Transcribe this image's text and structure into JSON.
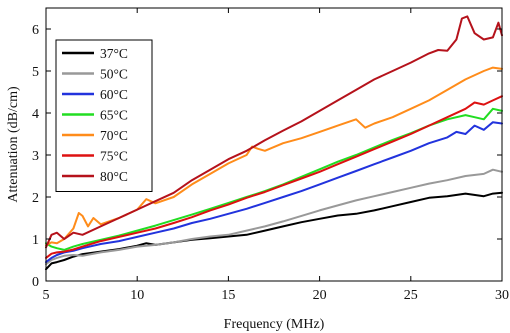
{
  "chart_data": {
    "type": "line",
    "title": "",
    "xlabel": "Frequency (MHz)",
    "ylabel": "Attenuation (dB/cm)",
    "xlim": [
      5,
      30
    ],
    "ylim": [
      0,
      6.5
    ],
    "xticks": [
      5,
      10,
      15,
      20,
      25,
      30
    ],
    "yticks": [
      0,
      1,
      2,
      3,
      4,
      5,
      6
    ],
    "xtick_labels": [
      "5",
      "10",
      "15",
      "20",
      "25",
      "30"
    ],
    "ytick_labels": [
      "0",
      "1",
      "2",
      "3",
      "4",
      "5",
      "6"
    ],
    "grid": false,
    "legend_position": "top-left",
    "series": [
      {
        "name": "37°C",
        "color": "#000000",
        "x": [
          5,
          5.3,
          5.6,
          6,
          6.5,
          7,
          8,
          9,
          10,
          10.5,
          11,
          12,
          13,
          14,
          15,
          16,
          17,
          18,
          19,
          20,
          21,
          22,
          23,
          24,
          25,
          26,
          27,
          28,
          29,
          29.5,
          30
        ],
        "y": [
          0.28,
          0.42,
          0.45,
          0.5,
          0.58,
          0.64,
          0.7,
          0.76,
          0.84,
          0.9,
          0.86,
          0.92,
          0.98,
          1.02,
          1.06,
          1.1,
          1.2,
          1.3,
          1.4,
          1.48,
          1.56,
          1.6,
          1.68,
          1.78,
          1.88,
          1.98,
          2.02,
          2.08,
          2.02,
          2.08,
          2.1
        ]
      },
      {
        "name": "50°C",
        "color": "#999999",
        "x": [
          5,
          5.3,
          5.6,
          6,
          6.5,
          7,
          8,
          9,
          10,
          11,
          12,
          13,
          14,
          15,
          16,
          17,
          18,
          19,
          20,
          21,
          22,
          23,
          24,
          25,
          26,
          27,
          28,
          29,
          29.5,
          30
        ],
        "y": [
          0.4,
          0.5,
          0.55,
          0.6,
          0.62,
          0.6,
          0.68,
          0.74,
          0.82,
          0.86,
          0.92,
          1.0,
          1.06,
          1.1,
          1.2,
          1.3,
          1.42,
          1.55,
          1.68,
          1.8,
          1.92,
          2.02,
          2.12,
          2.22,
          2.32,
          2.4,
          2.5,
          2.55,
          2.65,
          2.6
        ]
      },
      {
        "name": "60°C",
        "color": "#2233dd",
        "x": [
          5,
          5.3,
          5.6,
          6,
          6.5,
          7,
          8,
          9,
          10,
          11,
          12,
          13,
          14,
          15,
          16,
          17,
          18,
          19,
          20,
          21,
          22,
          23,
          24,
          25,
          26,
          27,
          27.5,
          28,
          28.5,
          29,
          29.5,
          30
        ],
        "y": [
          0.45,
          0.55,
          0.62,
          0.68,
          0.72,
          0.78,
          0.88,
          0.95,
          1.05,
          1.15,
          1.25,
          1.38,
          1.48,
          1.6,
          1.72,
          1.86,
          2.0,
          2.14,
          2.3,
          2.46,
          2.62,
          2.78,
          2.94,
          3.1,
          3.28,
          3.42,
          3.55,
          3.5,
          3.7,
          3.6,
          3.78,
          3.75
        ]
      },
      {
        "name": "65°C",
        "color": "#22dd22",
        "x": [
          5,
          5.3,
          5.6,
          6,
          6.5,
          7,
          8,
          9,
          10,
          11,
          12,
          13,
          14,
          15,
          16,
          17,
          18,
          19,
          20,
          21,
          22,
          23,
          24,
          25,
          26,
          27,
          28,
          28.5,
          29,
          29.5,
          30
        ],
        "y": [
          0.9,
          0.82,
          0.78,
          0.74,
          0.82,
          0.88,
          0.98,
          1.08,
          1.2,
          1.32,
          1.45,
          1.58,
          1.72,
          1.86,
          2.0,
          2.14,
          2.3,
          2.48,
          2.66,
          2.84,
          3.0,
          3.18,
          3.36,
          3.52,
          3.7,
          3.85,
          3.95,
          3.9,
          3.85,
          4.1,
          4.05
        ]
      },
      {
        "name": "70°C",
        "color": "#ff8c1a",
        "x": [
          5,
          5.3,
          5.6,
          6,
          6.5,
          6.8,
          7,
          7.3,
          7.6,
          8,
          9,
          10,
          10.5,
          11,
          12,
          13,
          14,
          15,
          16,
          16.3,
          16.6,
          17,
          18,
          19,
          20,
          21,
          22,
          22.5,
          23,
          24,
          25,
          26,
          27,
          28,
          29,
          29.5,
          30
        ],
        "y": [
          0.85,
          0.92,
          0.9,
          1.0,
          1.25,
          1.62,
          1.55,
          1.3,
          1.5,
          1.35,
          1.5,
          1.7,
          1.95,
          1.85,
          2.0,
          2.3,
          2.55,
          2.8,
          3.0,
          3.2,
          3.15,
          3.1,
          3.28,
          3.4,
          3.55,
          3.7,
          3.85,
          3.65,
          3.75,
          3.9,
          4.1,
          4.3,
          4.55,
          4.8,
          5.0,
          5.08,
          5.05
        ]
      },
      {
        "name": "75°C",
        "color": "#dd1111",
        "x": [
          5,
          5.3,
          5.6,
          6,
          6.5,
          7,
          8,
          9,
          10,
          11,
          12,
          13,
          14,
          15,
          16,
          17,
          18,
          19,
          20,
          21,
          22,
          23,
          24,
          25,
          26,
          27,
          28,
          28.5,
          29,
          29.5,
          30
        ],
        "y": [
          0.55,
          0.65,
          0.68,
          0.7,
          0.75,
          0.82,
          0.95,
          1.05,
          1.15,
          1.25,
          1.38,
          1.52,
          1.68,
          1.82,
          1.98,
          2.12,
          2.28,
          2.44,
          2.6,
          2.78,
          2.96,
          3.14,
          3.32,
          3.5,
          3.7,
          3.9,
          4.1,
          4.25,
          4.2,
          4.3,
          4.4
        ]
      },
      {
        "name": "80°C",
        "color": "#b5121b",
        "x": [
          5,
          5.3,
          5.6,
          6,
          6.5,
          7,
          8,
          9,
          10,
          11,
          12,
          13,
          14,
          15,
          16,
          17,
          18,
          19,
          20,
          21,
          22,
          23,
          24,
          25,
          26,
          26.5,
          27,
          27.5,
          27.8,
          28.1,
          28.5,
          29,
          29.5,
          29.8,
          30
        ],
        "y": [
          0.8,
          1.1,
          1.15,
          1.0,
          1.15,
          1.1,
          1.3,
          1.5,
          1.7,
          1.9,
          2.1,
          2.4,
          2.65,
          2.9,
          3.1,
          3.35,
          3.58,
          3.8,
          4.05,
          4.3,
          4.55,
          4.8,
          5.0,
          5.2,
          5.42,
          5.5,
          5.48,
          5.75,
          6.25,
          6.3,
          5.9,
          5.75,
          5.8,
          6.15,
          5.85
        ]
      }
    ]
  }
}
